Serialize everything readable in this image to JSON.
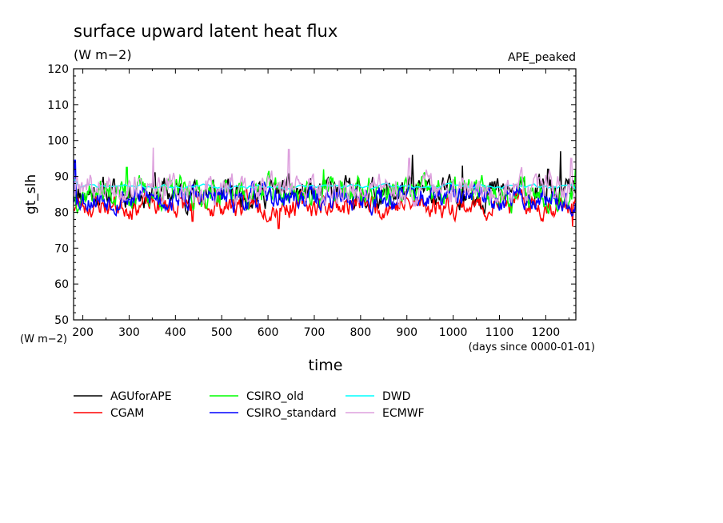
{
  "chart_data": {
    "type": "line",
    "title": "surface upward latent heat flux",
    "subtitle": "(W m−2)",
    "experiment": "APE_peaked",
    "xlabel": "time",
    "x_unit": "(days since 0000-01-01)",
    "ylabel": "gt_slh",
    "y_unit": "(W m−2)",
    "xlim": [
      180,
      1265
    ],
    "ylim": [
      50,
      120
    ],
    "x_ticks": [
      200,
      300,
      400,
      500,
      600,
      700,
      800,
      900,
      1000,
      1100,
      1200
    ],
    "y_ticks": [
      50,
      60,
      70,
      80,
      90,
      100,
      110,
      120
    ],
    "grid": false,
    "legend_position": "below",
    "series": [
      {
        "name": "AGUforAPE",
        "color": "#000000",
        "start": 180,
        "end": 1265,
        "step": 2,
        "mean": 85.5,
        "amp": 3.6,
        "seed": 11,
        "spikes": [
          [
            355,
            91
          ],
          [
            912,
            96
          ],
          [
            1020,
            93
          ],
          [
            1232,
            97
          ],
          [
            1205,
            92
          ]
        ]
      },
      {
        "name": "CGAM",
        "color": "#ff0000",
        "start": 180,
        "end": 1265,
        "step": 2,
        "mean": 82.0,
        "amp": 3.0,
        "seed": 23,
        "spikes": [
          [
            623,
            75.5
          ],
          [
            437,
            77.5
          ],
          [
            1258,
            76
          ]
        ]
      },
      {
        "name": "CSIRO_old",
        "color": "#00ff00",
        "start": 180,
        "end": 1265,
        "step": 2,
        "mean": 85.5,
        "amp": 3.8,
        "seed": 37,
        "spikes": [
          [
            295,
            92.5
          ],
          [
            1265,
            92
          ],
          [
            720,
            92
          ]
        ]
      },
      {
        "name": "CSIRO_standard",
        "color": "#0000ff",
        "start": 180,
        "end": 1265,
        "step": 2,
        "mean": 84.0,
        "amp": 3.2,
        "seed": 53,
        "spikes": [
          [
            183,
            94.5
          ],
          [
            1247,
            81
          ]
        ]
      },
      {
        "name": "DWD",
        "color": "#00ffff",
        "start": 180,
        "end": 1265,
        "step": 5,
        "mean": 87.2,
        "amp": 0.6,
        "seed": 71,
        "spikes": [
          [
            183,
            89
          ],
          [
            1265,
            86.3
          ]
        ]
      },
      {
        "name": "ECMWF",
        "color": "#dda0dd",
        "start": 180,
        "end": 1265,
        "step": 2,
        "mean": 86.5,
        "amp": 3.9,
        "seed": 89,
        "spikes": [
          [
            352,
            98
          ],
          [
            645,
            97.5
          ],
          [
            905,
            95
          ],
          [
            1255,
            95
          ]
        ]
      }
    ]
  }
}
